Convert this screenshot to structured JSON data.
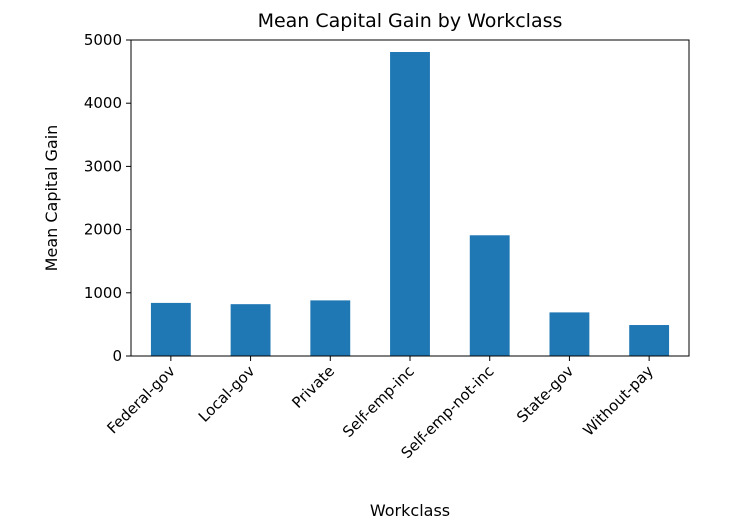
{
  "chart_data": {
    "type": "bar",
    "title": "Mean Capital Gain by Workclass",
    "xlabel": "Workclass",
    "ylabel": "Mean Capital Gain",
    "categories": [
      "Federal-gov",
      "Local-gov",
      "Private",
      "Self-emp-inc",
      "Self-emp-not-inc",
      "State-gov",
      "Without-pay"
    ],
    "values": [
      840,
      820,
      880,
      4810,
      1910,
      690,
      490
    ],
    "ylim": [
      0,
      5000
    ],
    "yticks": [
      0,
      1000,
      2000,
      3000,
      4000,
      5000
    ],
    "ytick_labels": [
      "0",
      "1000",
      "2000",
      "3000",
      "4000",
      "5000"
    ],
    "bar_color": "#1f77b4",
    "grid": false,
    "legend": "none"
  }
}
